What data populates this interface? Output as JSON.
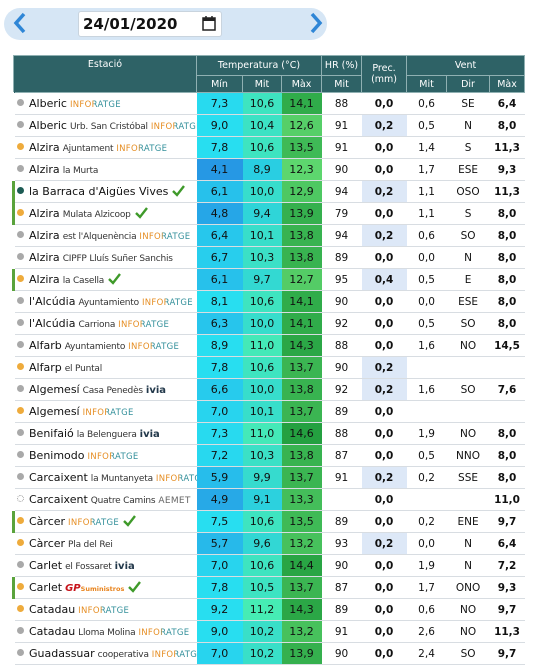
{
  "date": "24/01/2020",
  "table": {
    "headers": {
      "station": "Estació",
      "temp": "Temperatura (°C)",
      "hr": "HR (%)",
      "prec": "Prec. (mm)",
      "wind": "Vent",
      "min": "Mín",
      "mit": "Mit",
      "max": "Màx",
      "hr_mit": "Mit",
      "wind_mit": "Mit",
      "dir": "Dir",
      "wind_max": "Màx"
    },
    "rows": [
      {
        "dot": "grey",
        "place": "Alberic",
        "source": "INFORATGE",
        "min": "7,3",
        "mit": "10,6",
        "max": "14,1",
        "hr": "88",
        "prec": "0,0",
        "wind_mit": "0,6",
        "dir": "SE",
        "wind_max": "6,4"
      },
      {
        "dot": "grey",
        "place": "Alberic",
        "site": "Urb. San Cristóbal",
        "source": "INFORATGE",
        "min": "9,0",
        "mit": "10,4",
        "max": "12,6",
        "hr": "91",
        "prec": "0,2",
        "wind_mit": "0,5",
        "dir": "N",
        "wind_max": "8,0"
      },
      {
        "dot": "orange",
        "place": "Alzira",
        "site": "Ajuntament",
        "source": "INFORATGE",
        "min": "7,8",
        "mit": "10,6",
        "max": "13,5",
        "hr": "91",
        "prec": "0,0",
        "wind_mit": "1,4",
        "dir": "S",
        "wind_max": "11,3"
      },
      {
        "dot": "grey",
        "place": "Alzira",
        "site": "la Murta",
        "min": "4,1",
        "mit": "8,9",
        "max": "12,3",
        "hr": "90",
        "prec": "0,0",
        "wind_mit": "1,7",
        "dir": "ESE",
        "wind_max": "9,3"
      },
      {
        "dot": "teal",
        "check": true,
        "place": "la Barraca d'Aigües Vives",
        "min": "6,1",
        "mit": "10,0",
        "max": "12,9",
        "hr": "94",
        "prec": "0,2",
        "wind_mit": "1,1",
        "dir": "OSO",
        "wind_max": "11,3"
      },
      {
        "dot": "orange",
        "check": true,
        "place": "Alzira",
        "site": "Mulata Alzicoop",
        "min": "4,8",
        "mit": "9,4",
        "max": "13,9",
        "hr": "79",
        "prec": "0,0",
        "wind_mit": "1,1",
        "dir": "S",
        "wind_max": "8,0"
      },
      {
        "dot": "grey",
        "place": "Alzira",
        "site": "est l'Alquenència",
        "source": "INFORATGE",
        "min": "6,4",
        "mit": "10,1",
        "max": "13,8",
        "hr": "94",
        "prec": "0,2",
        "wind_mit": "0,6",
        "dir": "SO",
        "wind_max": "8,0"
      },
      {
        "dot": "grey",
        "place": "Alzira",
        "site": "CIPFP Lluís Suñer Sanchis",
        "min": "6,7",
        "mit": "10,3",
        "max": "13,8",
        "hr": "89",
        "prec": "0,0",
        "wind_mit": "0,0",
        "dir": "N",
        "wind_max": "8,0"
      },
      {
        "dot": "orange",
        "check": true,
        "place": "Alzira",
        "site": "la Casella",
        "min": "6,1",
        "mit": "9,7",
        "max": "12,7",
        "hr": "95",
        "prec": "0,4",
        "wind_mit": "0,5",
        "dir": "E",
        "wind_max": "8,0"
      },
      {
        "dot": "grey",
        "place": "l'Alcúdia",
        "site": "Ayuntamiento",
        "source": "INFORATGE",
        "min": "8,1",
        "mit": "10,6",
        "max": "14,1",
        "hr": "90",
        "prec": "0,0",
        "wind_mit": "0,0",
        "dir": "ESE",
        "wind_max": "8,0"
      },
      {
        "dot": "grey",
        "place": "l'Alcúdia",
        "site": "Carriona",
        "source": "INFORATGE",
        "min": "6,3",
        "mit": "10,0",
        "max": "14,1",
        "hr": "92",
        "prec": "0,0",
        "wind_mit": "0,5",
        "dir": "SO",
        "wind_max": "8,0"
      },
      {
        "dot": "grey",
        "place": "Alfarb",
        "site": "Ayuntamiento",
        "source": "INFORATGE",
        "min": "8,9",
        "mit": "11,0",
        "max": "14,3",
        "hr": "88",
        "prec": "0,0",
        "wind_mit": "1,6",
        "dir": "NO",
        "wind_max": "14,5"
      },
      {
        "dot": "orange",
        "place": "Alfarp",
        "site": "el Puntal",
        "min": "7,8",
        "mit": "10,6",
        "max": "13,7",
        "hr": "90",
        "prec": "0,2"
      },
      {
        "dot": "grey",
        "place": "Algemesí",
        "site": "Casa Penedès",
        "source": "ivia",
        "min": "6,6",
        "mit": "10,0",
        "max": "13,8",
        "hr": "92",
        "prec": "0,2",
        "wind_mit": "1,6",
        "dir": "SO",
        "wind_max": "7,6"
      },
      {
        "dot": "orange",
        "place": "Algemesí",
        "source": "INFORATGE",
        "min": "7,0",
        "mit": "10,1",
        "max": "13,7",
        "hr": "89",
        "prec": "0,0"
      },
      {
        "dot": "grey",
        "place": "Benifaió",
        "site": "la Belenguera",
        "source": "ivia",
        "min": "7,3",
        "mit": "11,0",
        "max": "14,6",
        "hr": "88",
        "prec": "0,0",
        "wind_mit": "1,9",
        "dir": "NO",
        "wind_max": "8,0"
      },
      {
        "dot": "grey",
        "place": "Benimodo",
        "source": "INFORATGE",
        "min": "7,2",
        "mit": "10,3",
        "max": "13,8",
        "hr": "87",
        "prec": "0,0",
        "wind_mit": "0,5",
        "dir": "NNO",
        "wind_max": "8,0"
      },
      {
        "dot": "grey",
        "place": "Carcaixent",
        "site": "la Muntanyeta",
        "source": "INFORATGE",
        "min": "5,9",
        "mit": "9,9",
        "max": "13,7",
        "hr": "91",
        "prec": "0,2",
        "wind_mit": "0,2",
        "dir": "SSE",
        "wind_max": "8,0"
      },
      {
        "dot": "dotted",
        "place": "Carcaixent",
        "site": "Quatre Camins",
        "source": "AEMET",
        "min": "4,9",
        "mit": "9,1",
        "max": "13,3",
        "prec": "0,0",
        "wind_max": "11,0"
      },
      {
        "dot": "orange",
        "check": true,
        "place": "Càrcer",
        "source": "INFORATGE",
        "min": "7,5",
        "mit": "10,6",
        "max": "13,5",
        "hr": "89",
        "prec": "0,0",
        "wind_mit": "0,2",
        "dir": "ENE",
        "wind_max": "9,7"
      },
      {
        "dot": "orange",
        "place": "Càrcer",
        "site": "Pla del Rei",
        "min": "5,7",
        "mit": "9,6",
        "max": "13,2",
        "hr": "93",
        "prec": "0,2",
        "wind_mit": "0,0",
        "dir": "N",
        "wind_max": "6,4"
      },
      {
        "dot": "grey",
        "place": "Carlet",
        "site": "el Fossaret",
        "source": "ivia",
        "min": "7,0",
        "mit": "10,6",
        "max": "14,4",
        "hr": "90",
        "prec": "0,0",
        "wind_mit": "1,9",
        "dir": "N",
        "wind_max": "7,2"
      },
      {
        "dot": "orange",
        "check": true,
        "place": "Carlet",
        "source": "GP",
        "source_sub": "Suministros",
        "min": "7,8",
        "mit": "10,5",
        "max": "13,7",
        "hr": "87",
        "prec": "0,0",
        "wind_mit": "1,7",
        "dir": "ONO",
        "wind_max": "9,3"
      },
      {
        "dot": "orange",
        "place": "Catadau",
        "source": "INFORATGE",
        "min": "9,2",
        "mit": "11,2",
        "max": "14,3",
        "hr": "89",
        "prec": "0,0",
        "wind_mit": "0,6",
        "dir": "NO",
        "wind_max": "9,7"
      },
      {
        "dot": "grey",
        "place": "Catadau",
        "site": "Lloma Molina",
        "source": "INFORATGE",
        "min": "9,0",
        "mit": "10,2",
        "max": "13,2",
        "hr": "91",
        "prec": "0,0",
        "wind_mit": "2,6",
        "dir": "NO",
        "wind_max": "11,3"
      },
      {
        "dot": "grey",
        "place": "Guadassuar",
        "site": "cooperativa",
        "source": "INFORATGE",
        "min": "7,0",
        "mit": "10,2",
        "max": "13,9",
        "hr": "90",
        "prec": "0,0",
        "wind_mit": "2,4",
        "dir": "SO",
        "wind_max": "9,7"
      }
    ]
  }
}
